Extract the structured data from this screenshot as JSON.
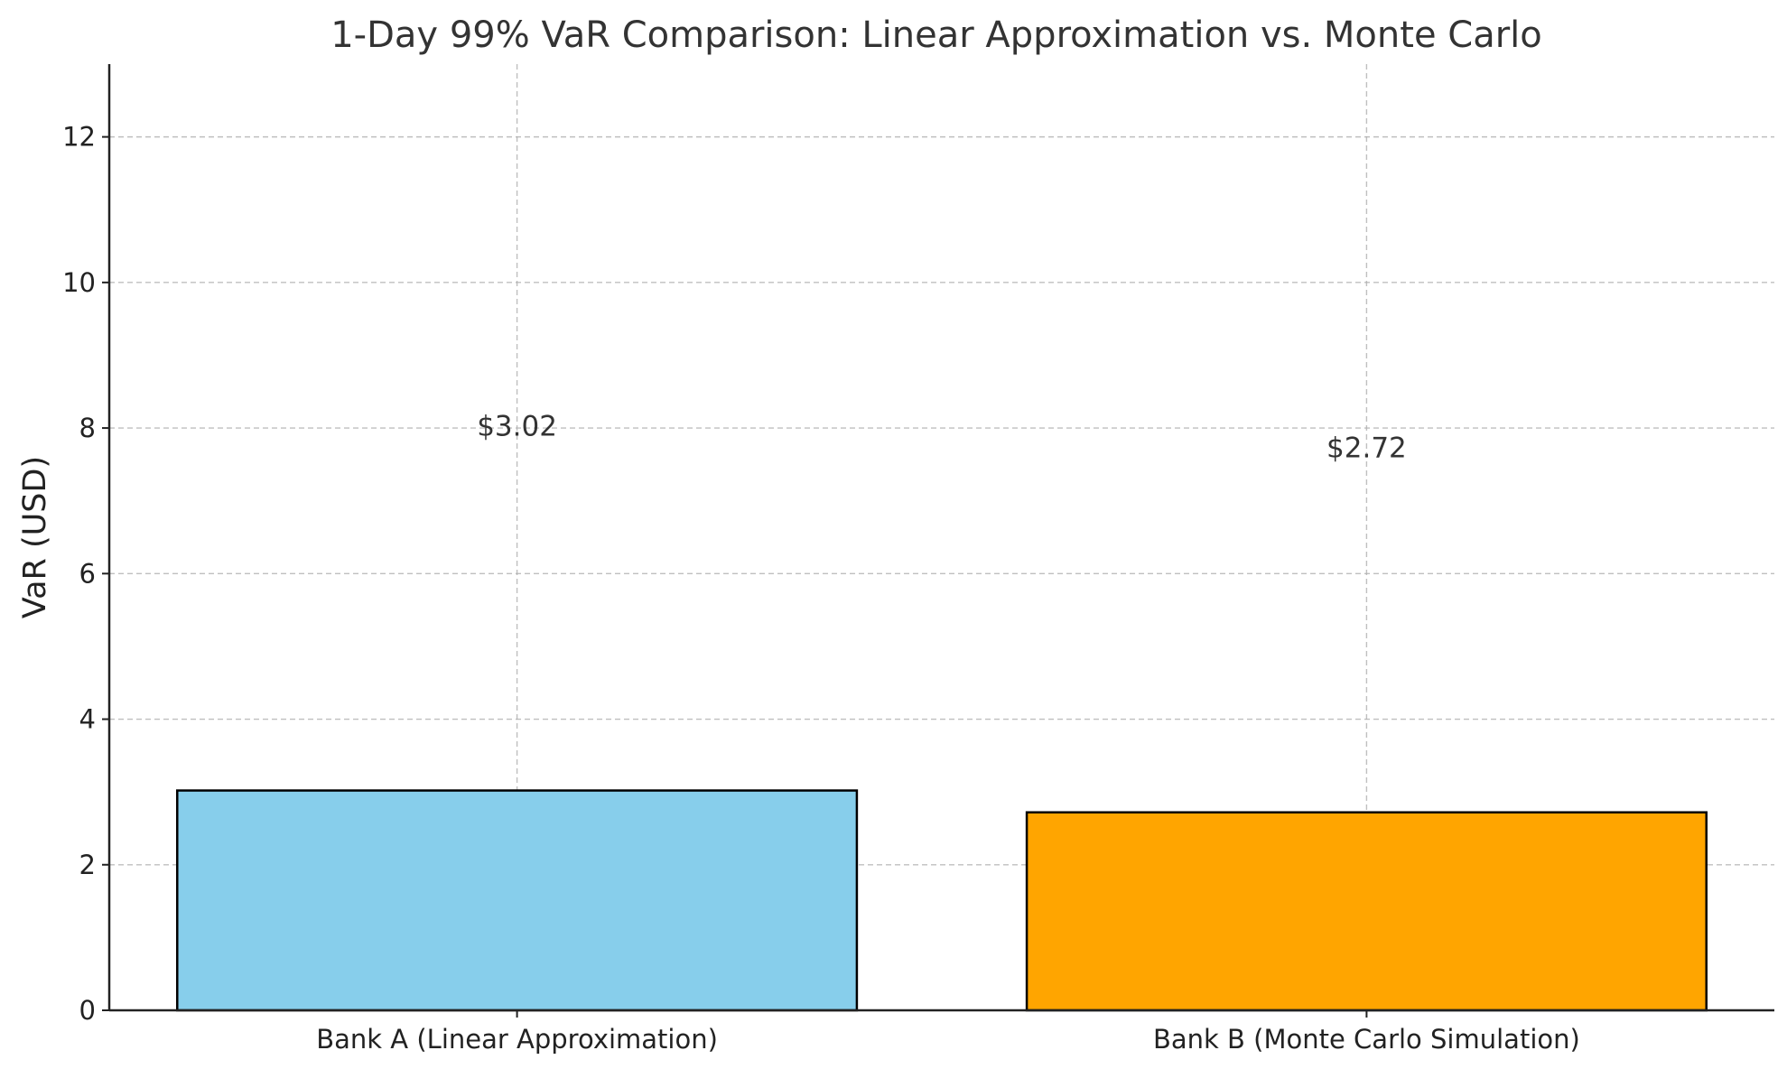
{
  "chart_data": {
    "type": "bar",
    "title": "1-Day 99% VaR Comparison: Linear Approximation vs. Monte Carlo",
    "xlabel": "",
    "ylabel": "VaR (USD)",
    "categories": [
      "Bank A (Linear Approximation)",
      "Bank B (Monte Carlo Simulation)"
    ],
    "values": [
      3.02,
      2.72
    ],
    "data_labels": [
      "$3.02",
      "$2.72"
    ],
    "colors": [
      "#87CEEB",
      "#FFA500"
    ],
    "edge_color": "#000000",
    "ylim": [
      0,
      13
    ],
    "yticks": [
      0,
      2,
      4,
      6,
      8,
      10,
      12
    ],
    "ytick_labels": [
      "0",
      "2",
      "4",
      "6",
      "8",
      "10",
      "12"
    ],
    "grid": true,
    "grid_style": "dashed",
    "legend": "none"
  }
}
